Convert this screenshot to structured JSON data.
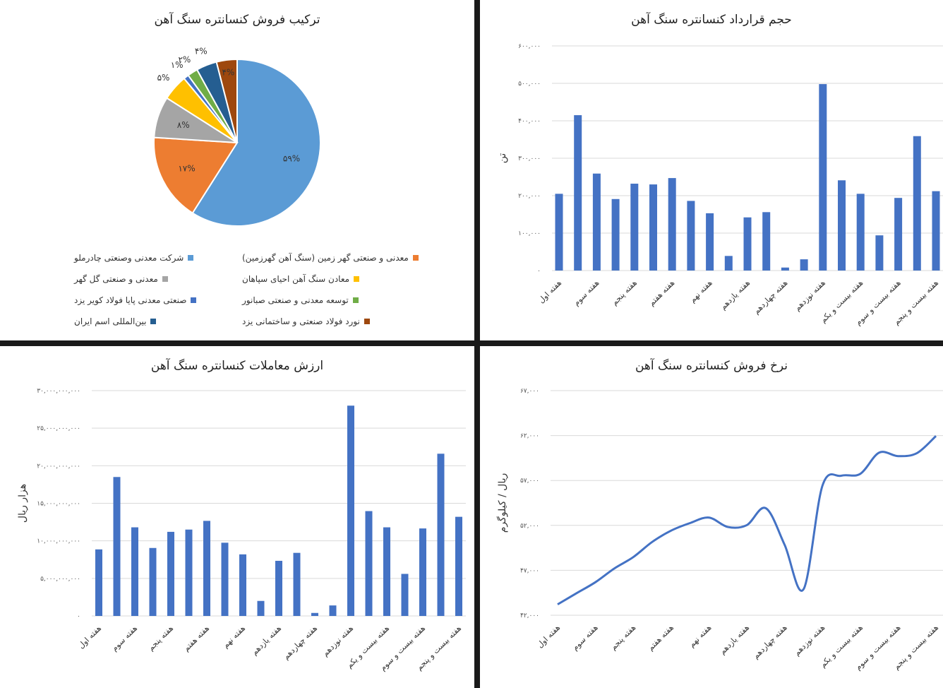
{
  "chart_data": [
    {
      "type": "pie",
      "title": "ترکیب فروش کنسانتره سنگ آهن",
      "slices": [
        {
          "name": "شرکت معدنی وصنعتی چادرملو",
          "value": 59,
          "label": "۵۹%",
          "color": "#5B9BD5"
        },
        {
          "name": "معدنی و صنعتی گهر زمین (سنگ آهن گهرزمین)",
          "value": 17,
          "label": "۱۷%",
          "color": "#ED7D31"
        },
        {
          "name": "معدنی و صنعتی گل گهر",
          "value": 8,
          "label": "۸%",
          "color": "#A5A5A5"
        },
        {
          "name": "معادن سنگ آهن احیای سپاهان",
          "value": 5,
          "label": "۵%",
          "color": "#FFC000"
        },
        {
          "name": "صنعتی معدنی پایا فولاد کویر یزد",
          "value": 1,
          "label": "۱%",
          "color": "#4472C4"
        },
        {
          "name": "توسعه معدنی و صنعتی صبانور",
          "value": 2,
          "label": "۲%",
          "color": "#70AD47"
        },
        {
          "name": "بین‌المللی اسم ایران",
          "value": 4,
          "label": "۴%",
          "color": "#255E91"
        },
        {
          "name": "نورد فولاد صنعتی و ساختمانی یزد",
          "value": 4,
          "label": "۴%",
          "color": "#9E480E"
        }
      ],
      "legend": "bottom"
    },
    {
      "type": "bar",
      "title": "حجم قرارداد کنسانتره سنگ آهن",
      "ylabel": "تن",
      "ylim": [
        0,
        600000
      ],
      "yticks": [
        "۰",
        "۱۰۰,۰۰۰",
        "۲۰۰,۰۰۰",
        "۳۰۰,۰۰۰",
        "۴۰۰,۰۰۰",
        "۵۰۰,۰۰۰",
        "۶۰۰,۰۰۰"
      ],
      "categories": [
        "هفته اول",
        "",
        "هفته سوم",
        "",
        "هفته پنجم",
        "",
        "هفته هفتم",
        "",
        "هفته نهم",
        "",
        "هفته یازدهم",
        "",
        "هفته چهاردهم",
        "",
        "هفته نوزدهم",
        "",
        "هفته بیست و یکم",
        "",
        "هفته بیست و سوم",
        "",
        "هفته بیست و پنجم"
      ],
      "values": [
        205000,
        415000,
        259000,
        191000,
        232000,
        230000,
        247000,
        186000,
        153000,
        39000,
        142000,
        156000,
        8000,
        30000,
        498000,
        241000,
        205000,
        94000,
        194000,
        359000,
        212000
      ],
      "color": "#4472C4",
      "grid": true
    },
    {
      "type": "bar",
      "title": "ارزش معاملات کنسانتره سنگ آهن",
      "ylabel": "هزار ریال",
      "ylim": [
        0,
        30000000000
      ],
      "yticks": [
        "۰",
        "۵,۰۰۰,۰۰۰,۰۰۰",
        "۱۰,۰۰۰,۰۰۰,۰۰۰",
        "۱۵,۰۰۰,۰۰۰,۰۰۰",
        "۲۰,۰۰۰,۰۰۰,۰۰۰",
        "۲۵,۰۰۰,۰۰۰,۰۰۰",
        "۳۰,۰۰۰,۰۰۰,۰۰۰"
      ],
      "categories": [
        "هفته اول",
        "",
        "هفته سوم",
        "",
        "هفته پنجم",
        "",
        "هفته هفتم",
        "",
        "هفته نهم",
        "",
        "هفته یازدهم",
        "",
        "هفته چهاردهم",
        "",
        "هفته نوزدهم",
        "",
        "هفته بیست و یکم",
        "",
        "هفته بیست و سوم",
        "",
        "هفته بیست و پنجم"
      ],
      "values": [
        8860000000,
        18500000000,
        11800000000,
        9050000000,
        11200000000,
        11500000000,
        12660000000,
        9750000000,
        8200000000,
        2000000000,
        7340000000,
        8400000000,
        400000000,
        1400000000,
        28000000000,
        13960000000,
        11800000000,
        5600000000,
        11650000000,
        21600000000,
        13200000000
      ],
      "color": "#4472C4",
      "grid": true
    },
    {
      "type": "line",
      "title": "نرخ فروش کنسانتره سنگ آهن",
      "ylabel": "ریال / کیلوگرم",
      "ylim": [
        42000,
        67000
      ],
      "yticks": [
        "۴۲,۰۰۰",
        "۴۷,۰۰۰",
        "۵۲,۰۰۰",
        "۵۷,۰۰۰",
        "۶۲,۰۰۰",
        "۶۷,۰۰۰"
      ],
      "categories": [
        "هفته اول",
        "",
        "هفته سوم",
        "",
        "هفته پنجم",
        "",
        "هفته هفتم",
        "",
        "هفته نهم",
        "",
        "هفته یازدهم",
        "",
        "هفته چهاردهم",
        "",
        "هفته نوزدهم",
        "",
        "هفته بیست و یکم",
        "",
        "هفته بیست و سوم",
        "",
        "هفته بیست و پنجم"
      ],
      "values": [
        43210,
        44450,
        45680,
        47210,
        48470,
        50160,
        51420,
        52260,
        52870,
        51820,
        52030,
        53920,
        49840,
        44890,
        56420,
        57530,
        57740,
        60100,
        59710,
        60050,
        61950
      ],
      "color": "#4472C4",
      "grid": true
    }
  ]
}
